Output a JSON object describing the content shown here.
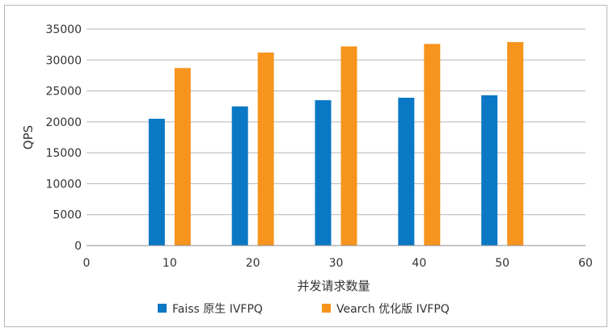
{
  "chart_data": {
    "type": "bar",
    "xlabel": "并发请求数量",
    "ylabel": "QPS",
    "xlim": [
      0,
      60
    ],
    "ylim": [
      0,
      35000
    ],
    "x_ticks": [
      0,
      10,
      20,
      30,
      40,
      50,
      60
    ],
    "y_ticks": [
      0,
      5000,
      10000,
      15000,
      20000,
      25000,
      30000,
      35000
    ],
    "grid": "horizontal",
    "legend_position": "bottom",
    "categories": [
      10,
      20,
      30,
      40,
      50
    ],
    "series": [
      {
        "name": "Faiss 原生 IVFPQ",
        "color": "#0a78c4",
        "values": [
          20500,
          22500,
          23500,
          23900,
          24300
        ]
      },
      {
        "name": "Vearch 优化版 IVFPQ",
        "color": "#f7941d",
        "values": [
          28700,
          31200,
          32200,
          32600,
          32900
        ]
      }
    ]
  }
}
